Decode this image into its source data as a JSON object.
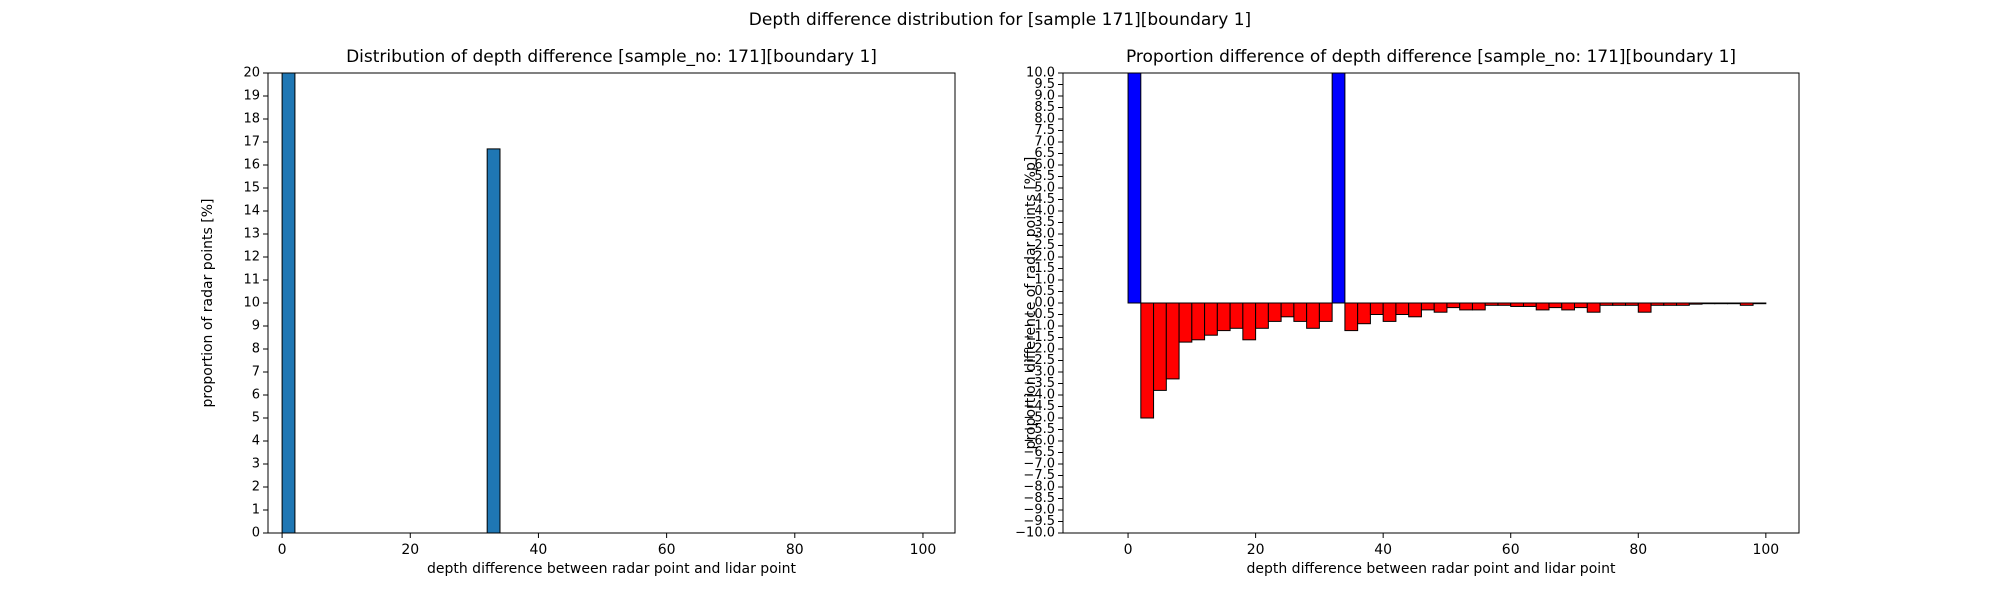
{
  "title": "Depth difference distribution for [sample 171][boundary 1]",
  "chart_data": [
    {
      "type": "histogram",
      "title": "Distribution of depth difference [sample_no: 171][boundary 1]",
      "x_label": "depth difference between radar point and lidar point",
      "y_label": "proportion of radar points [%]",
      "bins": [
        0,
        2,
        4,
        6,
        8,
        10,
        12,
        14,
        16,
        18,
        20,
        22,
        24,
        26,
        28,
        30,
        32,
        34,
        36,
        38,
        40,
        42,
        44,
        46,
        48,
        50,
        52,
        54,
        56,
        58,
        60,
        62,
        64,
        66,
        68,
        70,
        72,
        74,
        76,
        78,
        80,
        82,
        84,
        86,
        88,
        90,
        92,
        94,
        96,
        98,
        100
      ],
      "values": [
        20,
        0,
        0,
        0,
        0,
        0,
        0,
        0,
        0,
        0,
        0,
        0,
        0,
        0,
        0,
        0,
        16.7,
        0,
        0,
        0,
        0,
        0,
        0,
        0,
        0,
        0,
        0,
        0,
        0,
        0,
        0,
        0,
        0,
        0,
        0,
        0,
        0,
        0,
        0,
        0,
        0,
        0,
        0,
        0,
        0,
        0,
        0,
        0,
        0,
        0
      ],
      "color": "#1f77b4",
      "xlim": [
        -2.2,
        105
      ],
      "xticks": [
        0,
        20,
        40,
        60,
        80,
        100
      ],
      "ylim": [
        0,
        20
      ],
      "yticks": [
        0,
        1,
        2,
        3,
        4,
        5,
        6,
        7,
        8,
        9,
        10,
        11,
        12,
        13,
        14,
        15,
        16,
        17,
        18,
        19,
        20
      ]
    },
    {
      "type": "histogram",
      "title": "Proportion difference of depth difference [sample_no: 171][boundary 1]",
      "x_label": "depth difference between radar point and lidar point",
      "y_label": "proportion difference of radar points [%p]",
      "bins": [
        0,
        2,
        4,
        6,
        8,
        10,
        12,
        14,
        16,
        18,
        20,
        22,
        24,
        26,
        28,
        30,
        32,
        34,
        36,
        38,
        40,
        42,
        44,
        46,
        48,
        50,
        52,
        54,
        56,
        58,
        60,
        62,
        64,
        66,
        68,
        70,
        72,
        74,
        76,
        78,
        80,
        82,
        84,
        86,
        88,
        90,
        92,
        94,
        96,
        98,
        100
      ],
      "values": [
        10,
        -5.0,
        -3.8,
        -3.3,
        -1.7,
        -1.6,
        -1.4,
        -1.2,
        -1.1,
        -1.6,
        -1.1,
        -0.8,
        -0.6,
        -0.8,
        -1.1,
        -0.8,
        10,
        -1.2,
        -0.9,
        -0.5,
        -0.8,
        -0.5,
        -0.6,
        -0.3,
        -0.4,
        -0.2,
        -0.3,
        -0.3,
        -0.1,
        -0.1,
        -0.15,
        -0.15,
        -0.3,
        -0.2,
        -0.3,
        -0.2,
        -0.4,
        -0.1,
        -0.1,
        -0.1,
        -0.4,
        -0.1,
        -0.1,
        -0.1,
        -0.05,
        -0.03,
        -0.03,
        -0.03,
        -0.1,
        -0.03
      ],
      "positive_color": "#0000ff",
      "negative_color": "#ff0000",
      "xlim": [
        -10.2,
        105.2
      ],
      "xticks": [
        0,
        20,
        40,
        60,
        80,
        100
      ],
      "ylim": [
        -10,
        10
      ],
      "yticks": [
        {
          "value": -10,
          "label": "−10.0"
        },
        {
          "value": -9.5,
          "label": "−9.5"
        },
        {
          "value": -9,
          "label": "−9.0"
        },
        {
          "value": -8.5,
          "label": "−8.5"
        },
        {
          "value": -8,
          "label": "−8.0"
        },
        {
          "value": -7.5,
          "label": "−7.5"
        },
        {
          "value": -7,
          "label": "−7.0"
        },
        {
          "value": -6.5,
          "label": "−6.5"
        },
        {
          "value": -6,
          "label": "−6.0"
        },
        {
          "value": -5.5,
          "label": "−5.5"
        },
        {
          "value": -5,
          "label": "−5.0"
        },
        {
          "value": -4.5,
          "label": "−4.5"
        },
        {
          "value": -4,
          "label": "−4.0"
        },
        {
          "value": -3.5,
          "label": "−3.5"
        },
        {
          "value": -3,
          "label": "−3.0"
        },
        {
          "value": -2.5,
          "label": "−2.5"
        },
        {
          "value": -2,
          "label": "−2.0"
        },
        {
          "value": -1.5,
          "label": "−1.5"
        },
        {
          "value": -1,
          "label": "−1.0"
        },
        {
          "value": -0.5,
          "label": "−0.5"
        },
        {
          "value": 0,
          "label": "0.0"
        },
        {
          "value": 0.5,
          "label": "0.5"
        },
        {
          "value": 1,
          "label": "1.0"
        },
        {
          "value": 1.5,
          "label": "1.5"
        },
        {
          "value": 2,
          "label": "2.0"
        },
        {
          "value": 2.5,
          "label": "2.5"
        },
        {
          "value": 3,
          "label": "3.0"
        },
        {
          "value": 3.5,
          "label": "3.5"
        },
        {
          "value": 4,
          "label": "4.0"
        },
        {
          "value": 4.5,
          "label": "4.5"
        },
        {
          "value": 5,
          "label": "5.0"
        },
        {
          "value": 5.5,
          "label": "5.5"
        },
        {
          "value": 6,
          "label": "6.0"
        },
        {
          "value": 6.5,
          "label": "6.5"
        },
        {
          "value": 7,
          "label": "7.0"
        },
        {
          "value": 7.5,
          "label": "7.5"
        },
        {
          "value": 8,
          "label": "8.0"
        },
        {
          "value": 8.5,
          "label": "8.5"
        },
        {
          "value": 9,
          "label": "9.0"
        },
        {
          "value": 9.5,
          "label": "9.5"
        },
        {
          "value": 10,
          "label": "10.0"
        }
      ]
    }
  ]
}
